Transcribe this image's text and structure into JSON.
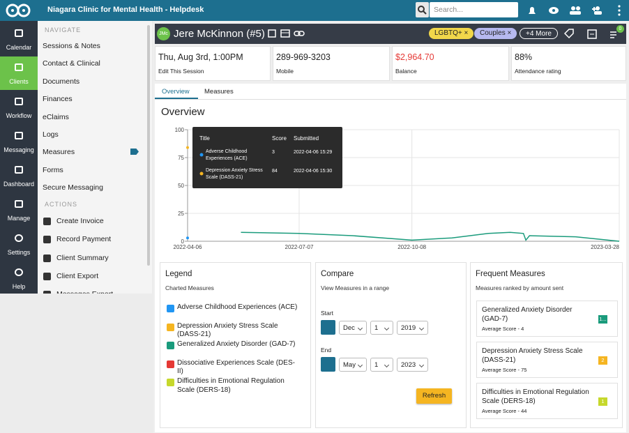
{
  "header": {
    "title": "Niagara Clinic for Mental Health - Helpdesk",
    "search_placeholder": "Search..."
  },
  "rail": [
    "Calendar",
    "Clients",
    "Workflow",
    "Messaging",
    "Dashboard",
    "Manage",
    "Settings",
    "Help"
  ],
  "sidebar": {
    "navigate_heading": "NAVIGATE",
    "navigate": [
      "Sessions & Notes",
      "Contact & Clinical",
      "Documents",
      "Finances",
      "eClaims",
      "Logs",
      "Measures",
      "Forms",
      "Secure Messaging"
    ],
    "actions_heading": "ACTIONS",
    "actions": [
      "Create Invoice",
      "Record Payment",
      "Client Summary",
      "Client Export",
      "Messages Export"
    ]
  },
  "client": {
    "initials": "JMc",
    "name": "Jere McKinnon (#5)",
    "tags": [
      "LGBTQ+",
      "Couples"
    ],
    "more": "+4 More",
    "badge": "0"
  },
  "stats": [
    {
      "value": "Thu, Aug 3rd, 1:00PM",
      "label": "Edit This Session"
    },
    {
      "value": "289-969-3203",
      "label": "Mobile"
    },
    {
      "value": "$2,964.70",
      "label": "Balance"
    },
    {
      "value": "88%",
      "label": "Attendance rating"
    }
  ],
  "tabs": [
    "Overview",
    "Measures"
  ],
  "overview_title": "Overview",
  "chart": {
    "ylim": [
      0,
      100
    ],
    "yticks": [
      0,
      25,
      50,
      75,
      100
    ],
    "xlim": [
      "2022-04-06",
      "2023-03-28"
    ],
    "xticks": [
      "2022-04-06",
      "2022-07-07",
      "2022-10-08",
      "2023-03-28"
    ],
    "series": [
      {
        "color": "#2196f3",
        "x": [
          "2022-04-06"
        ],
        "values": [
          3
        ]
      },
      {
        "color": "#f5b521",
        "x": [
          "2022-04-06"
        ],
        "values": [
          84
        ]
      },
      {
        "color": "#1a9b7c",
        "x": [
          "2022-05-20",
          "2022-07-07",
          "2022-08-20",
          "2022-10-08",
          "2022-11-10",
          "2022-12-10",
          "2022-12-28",
          "2023-01-08",
          "2023-01-10",
          "2023-01-13",
          "2023-02-20",
          "2023-03-28"
        ],
        "values": [
          8,
          7,
          5,
          1,
          3,
          7,
          8,
          7,
          1,
          5,
          4,
          0
        ]
      }
    ],
    "tooltip": {
      "headers": [
        "Title",
        "Score",
        "Submitted"
      ],
      "rows": [
        [
          "Adverse Childhood Experiences (ACE)",
          "3",
          "2022-04-06 15:29"
        ],
        [
          "Depression Anxiety Stress Scale (DASS-21)",
          "84",
          "2022-04-06 15:30"
        ]
      ]
    }
  },
  "legend": {
    "title": "Legend",
    "subtitle": "Charted Measures",
    "items": [
      {
        "label": "Adverse Childhood Experiences (ACE)",
        "color": "#2196f3"
      },
      {
        "label": "Depression Anxiety Stress Scale (DASS-21)",
        "color": "#f5b521"
      },
      {
        "label": "Generalized Anxiety Disorder (GAD-7)",
        "color": "#1a9b7c"
      },
      {
        "label": "Dissociative Experiences Scale (DES-II)",
        "color": "#e53935"
      },
      {
        "label": "Difficulties in Emotional Regulation Scale (DERS-18)",
        "color": "#c6d82c"
      }
    ]
  },
  "compare": {
    "title": "Compare",
    "subtitle": "View Measures in a range",
    "start_label": "Start",
    "start": [
      "Dec",
      "1",
      "2019"
    ],
    "end_label": "End",
    "end": [
      "May",
      "1",
      "2023"
    ],
    "button": "Refresh"
  },
  "frequent": {
    "title": "Frequent Measures",
    "subtitle": "Measures ranked by amount sent",
    "items": [
      {
        "name": "Generalized Anxiety Disorder (GAD-7)",
        "score": "Average Score - 4",
        "badge": "1...",
        "color": "#1a9b7c"
      },
      {
        "name": "Depression Anxiety Stress Scale (DASS-21)",
        "score": "Average Score - 75",
        "badge": "2",
        "color": "#f5b521"
      },
      {
        "name": "Difficulties in Emotional Regulation Scale (DERS-18)",
        "score": "Average Score - 44",
        "badge": "1",
        "color": "#c6d82c"
      }
    ]
  }
}
